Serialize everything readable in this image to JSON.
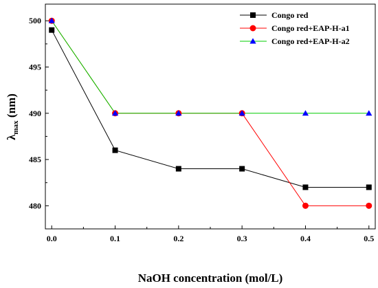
{
  "chart_data": {
    "type": "line",
    "title": "",
    "xlabel": "NaOH concentration (mol/L)",
    "ylabel": {
      "main": "λ",
      "sub": "max",
      "unit": " (nm)"
    },
    "x": [
      0.0,
      0.1,
      0.2,
      0.3,
      0.4,
      0.5
    ],
    "x_tick_labels": [
      "0.0",
      "0.1",
      "0.2",
      "0.3",
      "0.4",
      "0.5"
    ],
    "y_ticks": [
      480,
      485,
      490,
      495,
      500
    ],
    "y_tick_labels": [
      "480",
      "485",
      "490",
      "495",
      "500"
    ],
    "xlim": [
      -0.01,
      0.51
    ],
    "ylim": [
      477.5,
      501.8
    ],
    "grid": false,
    "legend_position": "top-right",
    "series": [
      {
        "name": "Congo red",
        "color": "#000000",
        "marker": "square",
        "values": [
          499,
          486,
          484,
          484,
          482,
          482
        ]
      },
      {
        "name": "Congo red+EAP-H-a1",
        "color": "#ff0000",
        "marker": "circle",
        "values": [
          500,
          490,
          490,
          490,
          480,
          480
        ]
      },
      {
        "name": "Congo red+EAP-H-a2",
        "color": "#00cc00",
        "marker_color": "#0000ff",
        "marker": "triangle",
        "values": [
          500,
          490,
          490,
          490,
          490,
          490
        ]
      }
    ]
  }
}
